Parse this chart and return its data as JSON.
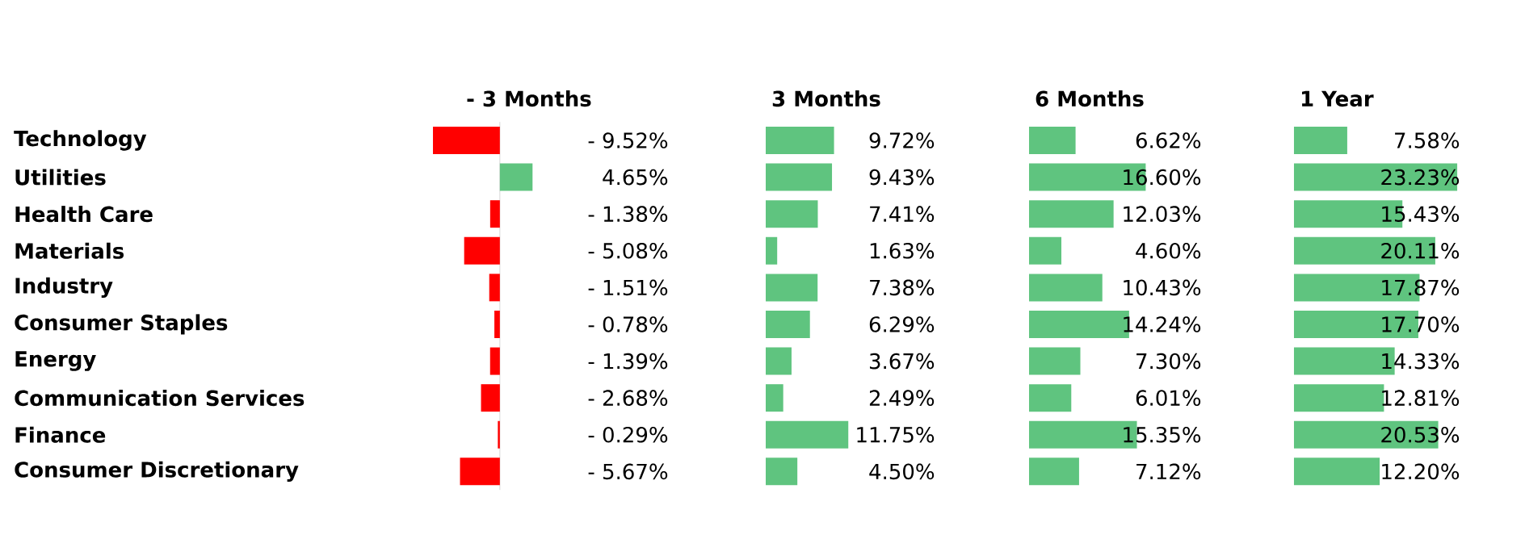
{
  "chart_data": [
    {
      "type": "bar",
      "orientation": "horizontal",
      "title": "- 3 Months",
      "tick_labels": "y",
      "categories": [
        "Technology",
        "Utilities",
        "Health Care",
        "Materials",
        "Industry",
        "Consumer Staples",
        "Energy",
        "Communication Services",
        "Finance",
        "Consumer Discretionary"
      ],
      "values": [
        -9.52,
        4.65,
        -1.38,
        -5.08,
        -1.51,
        -0.78,
        -1.39,
        -2.68,
        -0.29,
        -5.67
      ],
      "colors": [
        "#ff0000",
        "#5fc47f",
        "#ff0000",
        "#ff0000",
        "#ff0000",
        "#ff0000",
        "#ff0000",
        "#ff0000",
        "#ff0000",
        "#ff0000"
      ],
      "value_labels": [
        "- 9.52%",
        "4.65%",
        "- 1.38%",
        "- 5.08%",
        "- 1.51%",
        "- 0.78%",
        "- 1.39%",
        "- 2.68%",
        "- 0.29%",
        "- 5.67%"
      ]
    },
    {
      "type": "bar",
      "orientation": "horizontal",
      "title": "3 Months",
      "values": [
        9.72,
        9.43,
        7.41,
        1.63,
        7.38,
        6.29,
        3.67,
        2.49,
        11.75,
        4.5
      ],
      "color": "#5fc47f",
      "value_labels": [
        "9.72%",
        "9.43%",
        "7.41%",
        "1.63%",
        "7.38%",
        "6.29%",
        "3.67%",
        "2.49%",
        "11.75%",
        "4.50%"
      ]
    },
    {
      "type": "bar",
      "orientation": "horizontal",
      "title": "6 Months",
      "values": [
        6.62,
        16.6,
        12.03,
        4.6,
        10.43,
        14.24,
        7.3,
        6.01,
        15.35,
        7.12
      ],
      "color": "#5fc47f",
      "value_labels": [
        "6.62%",
        "16.60%",
        "12.03%",
        "4.60%",
        "10.43%",
        "14.24%",
        "7.30%",
        "6.01%",
        "15.35%",
        "7.12%"
      ]
    },
    {
      "type": "bar",
      "orientation": "horizontal",
      "title": "1 Year",
      "values": [
        7.58,
        23.23,
        15.43,
        20.11,
        17.87,
        17.7,
        14.33,
        12.81,
        20.53,
        12.2
      ],
      "color": "#5fc47f",
      "value_labels": [
        "7.58%",
        "23.23%",
        "15.43%",
        "20.11%",
        "17.87%",
        "17.70%",
        "14.33%",
        "12.81%",
        "20.53%",
        "12.20%"
      ]
    }
  ]
}
